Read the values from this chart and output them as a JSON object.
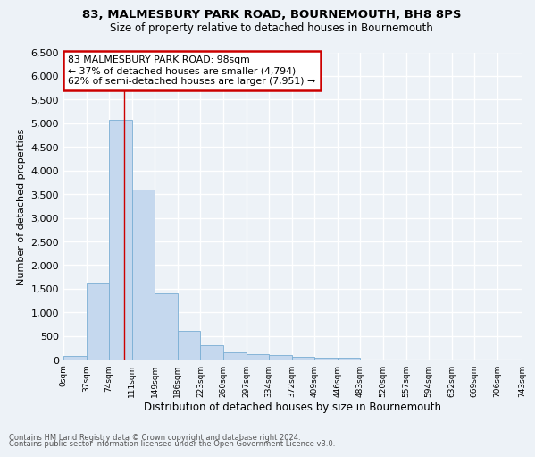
{
  "title1": "83, MALMESBURY PARK ROAD, BOURNEMOUTH, BH8 8PS",
  "title2": "Size of property relative to detached houses in Bournemouth",
  "xlabel": "Distribution of detached houses by size in Bournemouth",
  "ylabel": "Number of detached properties",
  "bin_edges": [
    0,
    37,
    74,
    111,
    148,
    185,
    222,
    259,
    296,
    333,
    370,
    407,
    444,
    481,
    518,
    555,
    592,
    629,
    666,
    703,
    743
  ],
  "bar_heights": [
    75,
    1625,
    5075,
    3600,
    1400,
    600,
    300,
    150,
    120,
    90,
    60,
    45,
    45,
    0,
    0,
    0,
    0,
    0,
    0,
    0
  ],
  "bar_color": "#c5d8ee",
  "bar_edge_color": "#7aaed4",
  "property_size": 98,
  "property_line_color": "#cc0000",
  "annotation_text": "83 MALMESBURY PARK ROAD: 98sqm\n← 37% of detached houses are smaller (4,794)\n62% of semi-detached houses are larger (7,951) →",
  "annotation_box_color": "#ffffff",
  "annotation_box_edge": "#cc0000",
  "ylim": [
    0,
    6500
  ],
  "yticks": [
    0,
    500,
    1000,
    1500,
    2000,
    2500,
    3000,
    3500,
    4000,
    4500,
    5000,
    5500,
    6000,
    6500
  ],
  "tick_labels": [
    "0sqm",
    "37sqm",
    "74sqm",
    "111sqm",
    "149sqm",
    "186sqm",
    "223sqm",
    "260sqm",
    "297sqm",
    "334sqm",
    "372sqm",
    "409sqm",
    "446sqm",
    "483sqm",
    "520sqm",
    "557sqm",
    "594sqm",
    "632sqm",
    "669sqm",
    "706sqm",
    "743sqm"
  ],
  "background_color": "#edf2f7",
  "grid_color": "#ffffff",
  "footnote1": "Contains HM Land Registry data © Crown copyright and database right 2024.",
  "footnote2": "Contains public sector information licensed under the Open Government Licence v3.0."
}
